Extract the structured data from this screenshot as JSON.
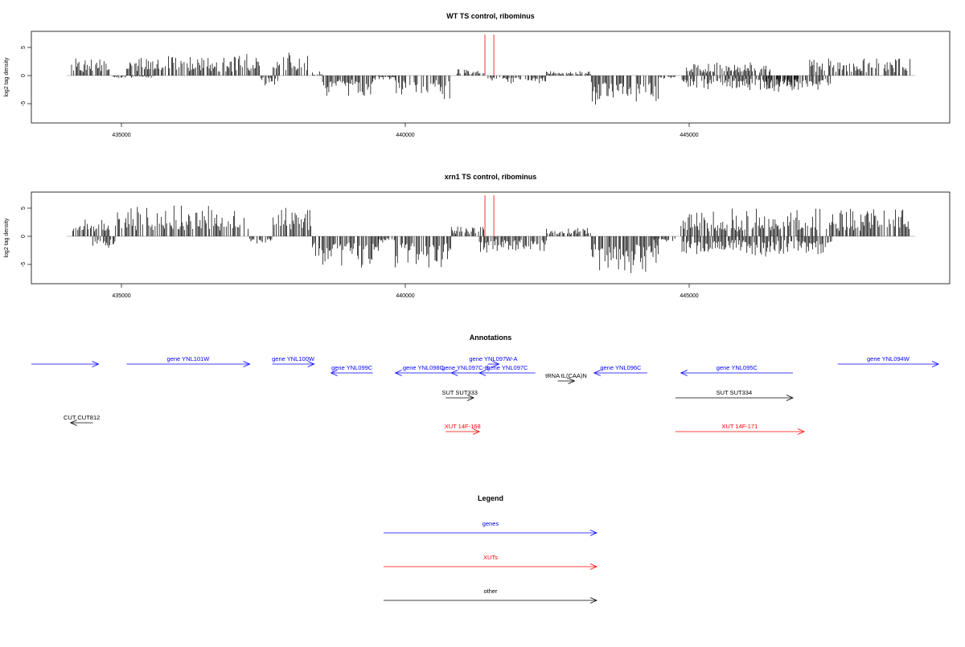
{
  "colors": {
    "gene": "#0000ff",
    "xut": "#ff0000",
    "other": "#000000",
    "probe": "#ff8080",
    "axis": "#000000"
  },
  "chart_data": [
    {
      "type": "bar",
      "title": "WT TS control, ribominus",
      "ylabel": "log2 tag density",
      "ylim": [
        -8,
        8
      ],
      "xlim": [
        433300,
        449700
      ],
      "xticks": [
        "435000",
        "440000",
        "445000"
      ],
      "xtick_values": [
        435000,
        440000,
        445000
      ],
      "yticks": [
        "-5",
        "0",
        "5"
      ],
      "ytick_values": [
        -5,
        0,
        5
      ],
      "red_markers_x": [
        441400,
        441560
      ],
      "signal_profile": [
        {
          "from": 434000,
          "to": 434700,
          "level": 2.2
        },
        {
          "from": 434750,
          "to": 435500,
          "level": -0.3
        },
        {
          "from": 435000,
          "to": 437400,
          "level": 2.6
        },
        {
          "from": 437400,
          "to": 437700,
          "level": -1.2
        },
        {
          "from": 437600,
          "to": 438300,
          "level": 3.0
        },
        {
          "from": 438300,
          "to": 438500,
          "level": 0.5
        },
        {
          "from": 438500,
          "to": 439400,
          "level": -2.6
        },
        {
          "from": 439400,
          "to": 439800,
          "level": -0.6
        },
        {
          "from": 439800,
          "to": 440800,
          "level": -3.0
        },
        {
          "from": 440900,
          "to": 441400,
          "level": 0.9
        },
        {
          "from": 441400,
          "to": 441700,
          "level": -0.7
        },
        {
          "from": 441700,
          "to": 442500,
          "level": -1.0
        },
        {
          "from": 442500,
          "to": 443300,
          "level": 0.6
        },
        {
          "from": 443300,
          "to": 444500,
          "level": -3.8
        },
        {
          "from": 444500,
          "to": 444800,
          "level": -0.4
        },
        {
          "from": 444900,
          "to": 447600,
          "level": -1.8
        },
        {
          "from": 445000,
          "to": 446500,
          "level": 1.7
        },
        {
          "from": 446400,
          "to": 447000,
          "level": -2.0
        },
        {
          "from": 447200,
          "to": 449000,
          "level": 2.3
        }
      ]
    },
    {
      "type": "bar",
      "title": "xrn1 TS control, ribominus",
      "ylabel": "log2 tag density",
      "ylim": [
        -8,
        8
      ],
      "xlim": [
        433300,
        449700
      ],
      "xticks": [
        "435000",
        "440000",
        "445000"
      ],
      "xtick_values": [
        435000,
        440000,
        445000
      ],
      "yticks": [
        "-5",
        "0",
        "5"
      ],
      "ytick_values": [
        -5,
        0,
        5
      ],
      "red_markers_x": [
        441400,
        441560
      ],
      "signal_profile": [
        {
          "from": 434000,
          "to": 434700,
          "level": 2.4
        },
        {
          "from": 434400,
          "to": 434800,
          "level": -1.8
        },
        {
          "from": 434800,
          "to": 437200,
          "level": 3.8
        },
        {
          "from": 437200,
          "to": 437600,
          "level": -1.0
        },
        {
          "from": 437600,
          "to": 438300,
          "level": 4.2
        },
        {
          "from": 438300,
          "to": 439500,
          "level": -3.8
        },
        {
          "from": 439500,
          "to": 439800,
          "level": -1.0
        },
        {
          "from": 439800,
          "to": 440800,
          "level": -4.0
        },
        {
          "from": 440800,
          "to": 441400,
          "level": 1.4
        },
        {
          "from": 441300,
          "to": 442500,
          "level": -2.0
        },
        {
          "from": 442500,
          "to": 443300,
          "level": 1.2
        },
        {
          "from": 443300,
          "to": 444500,
          "level": -4.5
        },
        {
          "from": 444400,
          "to": 444800,
          "level": -1.0
        },
        {
          "from": 444900,
          "to": 447400,
          "level": 3.4
        },
        {
          "from": 444900,
          "to": 447600,
          "level": -2.4
        },
        {
          "from": 447500,
          "to": 449000,
          "level": 3.6
        }
      ]
    }
  ],
  "annotations": {
    "title": "Annotations",
    "features": [
      {
        "label": "",
        "start": 433300,
        "end": 434500,
        "strand": "+",
        "kind": "gene",
        "row": 0
      },
      {
        "label": "gene YNL101W",
        "start": 435000,
        "end": 437200,
        "strand": "+",
        "kind": "gene",
        "row": 0
      },
      {
        "label": "gene YNL100W",
        "start": 437600,
        "end": 438350,
        "strand": "+",
        "kind": "gene",
        "row": 0
      },
      {
        "label": "gene YNL099C",
        "start": 438650,
        "end": 439400,
        "strand": "-",
        "kind": "gene",
        "row": 1
      },
      {
        "label": "gene YNL098C",
        "start": 439800,
        "end": 440800,
        "strand": "-",
        "kind": "gene",
        "row": 1
      },
      {
        "label": "gene YNL097C-B",
        "start": 440800,
        "end": 441300,
        "strand": "-",
        "kind": "gene",
        "row": 1
      },
      {
        "label": "gene YNL097W-A",
        "start": 441450,
        "end": 441650,
        "strand": "+",
        "kind": "gene",
        "row": 0
      },
      {
        "label": "gene YNL097C",
        "start": 441300,
        "end": 442300,
        "strand": "-",
        "kind": "gene",
        "row": 1
      },
      {
        "label": "tRNA tL(CAA)N",
        "start": 442700,
        "end": 443000,
        "strand": "+",
        "kind": "other",
        "row": 2
      },
      {
        "label": "gene YNL096C",
        "start": 443350,
        "end": 444300,
        "strand": "-",
        "kind": "gene",
        "row": 1
      },
      {
        "label": "gene YNL095C",
        "start": 444900,
        "end": 446900,
        "strand": "-",
        "kind": "gene",
        "row": 1
      },
      {
        "label": "gene YNL094W",
        "start": 447700,
        "end": 449500,
        "strand": "+",
        "kind": "gene",
        "row": 0
      },
      {
        "label": "SUT SUT333",
        "start": 440700,
        "end": 441200,
        "strand": "+",
        "kind": "other",
        "row": 3
      },
      {
        "label": "SUT SUT334",
        "start": 444800,
        "end": 446900,
        "strand": "+",
        "kind": "other",
        "row": 3
      },
      {
        "label": "CUT CUT812",
        "start": 434000,
        "end": 434400,
        "strand": "-",
        "kind": "other",
        "row": 4
      },
      {
        "label": "XUT 14F-168",
        "start": 440700,
        "end": 441300,
        "strand": "+",
        "kind": "xut",
        "row": 5
      },
      {
        "label": "XUT 14F-171",
        "start": 444800,
        "end": 447100,
        "strand": "+",
        "kind": "xut",
        "row": 5
      }
    ]
  },
  "legend": {
    "title": "Legend",
    "items": [
      {
        "label": "genes",
        "kind": "gene"
      },
      {
        "label": "XUTs",
        "kind": "xut"
      },
      {
        "label": "other",
        "kind": "other"
      }
    ]
  }
}
